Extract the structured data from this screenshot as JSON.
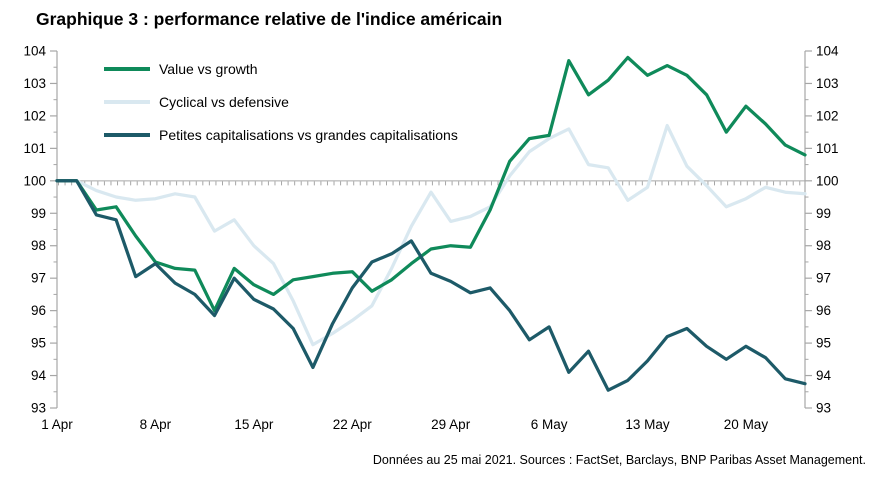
{
  "title": "Graphique 3 : performance relative de l'indice américain",
  "footer": "Données au 25 mai 2021. Sources : FactSet, Barclays, BNP Paribas Asset Management.",
  "colors": {
    "background": "#ffffff",
    "axis": "#a6a6a6",
    "text": "#000000",
    "value_growth": "#0f8a5a",
    "cyclical_defensive": "#d9e8f0",
    "petites_grandes": "#1d5a68"
  },
  "chart_data": {
    "type": "line",
    "title": "Graphique 3 : performance relative de l'indice américain",
    "x_axis": "trading days from 1 Apr 2021 to 25 May 2021",
    "x_tick_labels": [
      "1 Apr",
      "8 Apr",
      "15 Apr",
      "22 Apr",
      "29 Apr",
      "6 May",
      "13 May",
      "20 May"
    ],
    "x_tick_indices": [
      0,
      5,
      10,
      15,
      20,
      25,
      30,
      35
    ],
    "n_points": 39,
    "ylim": [
      93,
      104
    ],
    "y_ticks": [
      93,
      94,
      95,
      96,
      97,
      98,
      99,
      100,
      101,
      102,
      103,
      104
    ],
    "baseline": 100,
    "dual_axis": true,
    "grid": "single dashed horizontal reference line at 100",
    "legend_position": "top-left inside plot",
    "series": [
      {
        "name": "Value vs growth",
        "color": "#0f8a5a",
        "values": [
          100,
          100,
          99.1,
          99.2,
          98.3,
          97.5,
          97.3,
          97.25,
          96.0,
          97.3,
          96.8,
          96.5,
          96.95,
          97.05,
          97.15,
          97.2,
          96.6,
          96.95,
          97.45,
          97.9,
          98.0,
          97.95,
          99.1,
          100.6,
          101.3,
          101.4,
          103.7,
          102.65,
          103.1,
          103.8,
          103.25,
          103.55,
          103.25,
          102.65,
          101.5,
          102.3,
          101.75,
          101.1,
          100.8
        ]
      },
      {
        "name": "Cyclical vs defensive",
        "color": "#d9e8f0",
        "values": [
          100,
          100,
          99.7,
          99.5,
          99.4,
          99.45,
          99.6,
          99.5,
          98.45,
          98.8,
          98.0,
          97.45,
          96.3,
          94.95,
          95.3,
          95.7,
          96.15,
          97.3,
          98.6,
          99.65,
          98.75,
          98.9,
          99.2,
          100.15,
          100.9,
          101.3,
          101.6,
          100.5,
          100.4,
          99.4,
          99.8,
          101.7,
          100.45,
          99.85,
          99.2,
          99.45,
          99.8,
          99.65,
          99.6
        ]
      },
      {
        "name": "Petites capitalisations vs grandes capitalisations",
        "color": "#1d5a68",
        "values": [
          100,
          100,
          98.95,
          98.8,
          97.05,
          97.45,
          96.85,
          96.5,
          95.85,
          97.0,
          96.35,
          96.05,
          95.45,
          94.25,
          95.6,
          96.7,
          97.5,
          97.75,
          98.15,
          97.15,
          96.9,
          96.55,
          96.7,
          96.0,
          95.1,
          95.5,
          94.1,
          94.75,
          93.55,
          93.85,
          94.45,
          95.2,
          95.45,
          94.9,
          94.5,
          94.9,
          94.55,
          93.9,
          93.75
        ]
      }
    ]
  }
}
